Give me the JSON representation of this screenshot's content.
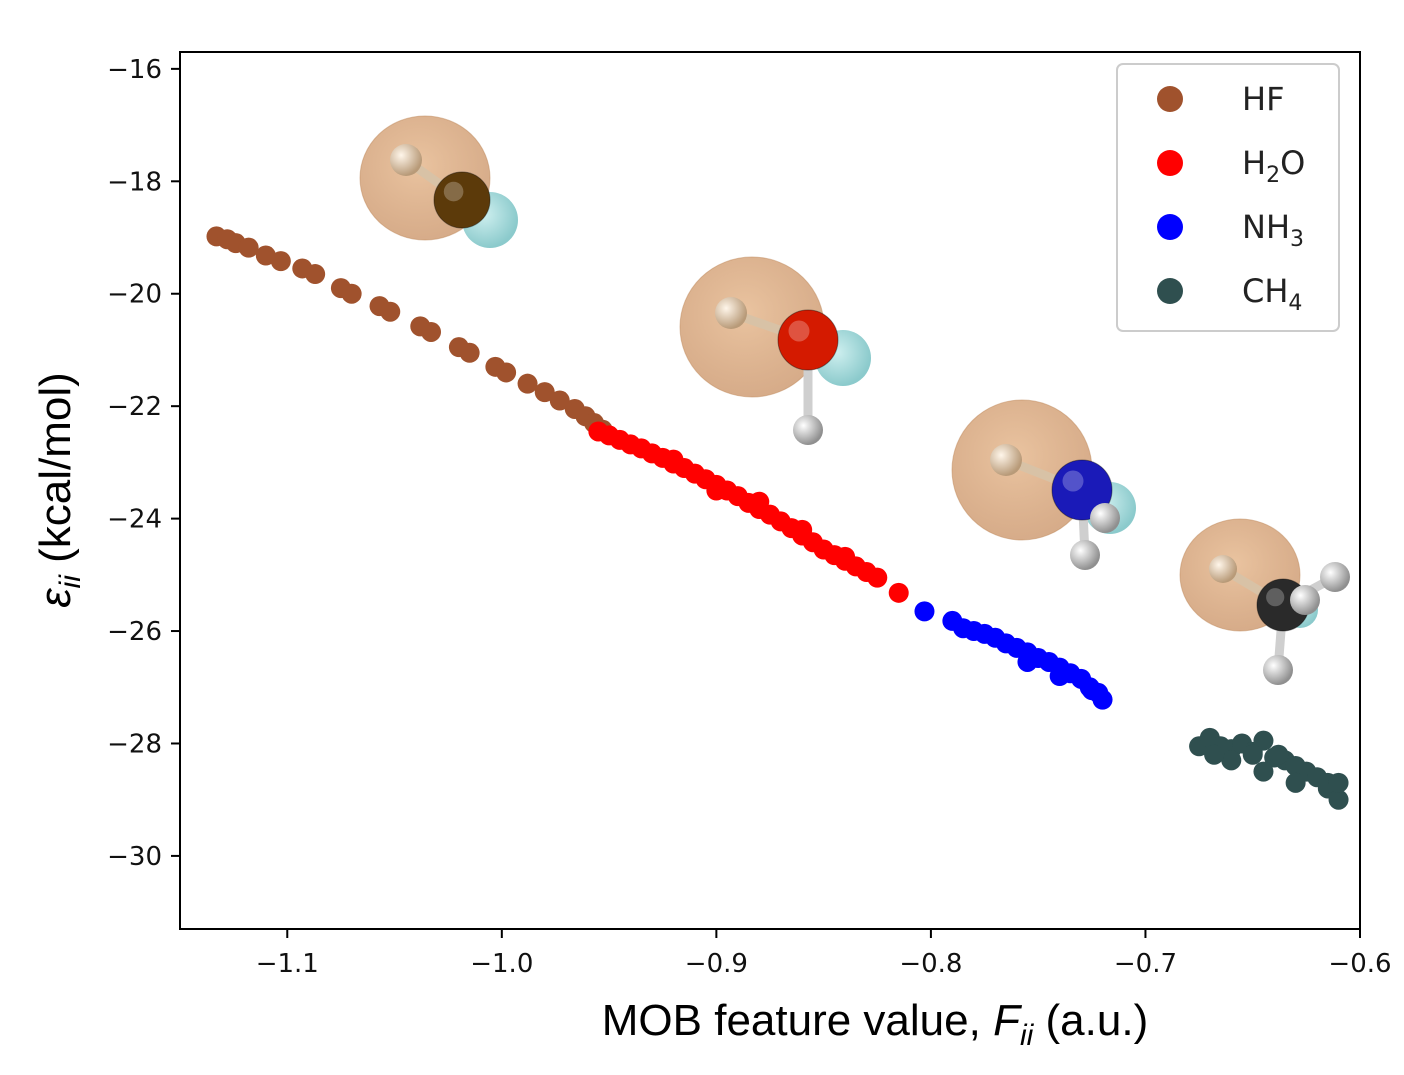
{
  "chart_data": {
    "type": "scatter",
    "xlabel": {
      "main": "MOB feature value, ",
      "symbol": "F",
      "sub": "ii",
      "unit": " (a.u.)"
    },
    "ylabel": {
      "symbol": "ε",
      "sub": "ii",
      "unit": " (kcal/mol)"
    },
    "xlim": [
      -1.15,
      -0.6
    ],
    "ylim": [
      -31.3,
      -15.7
    ],
    "xticks": [
      -1.1,
      -1.0,
      -0.9,
      -0.8,
      -0.7,
      -0.6
    ],
    "xtick_labels": [
      "−1.1",
      "−1.0",
      "−0.9",
      "−0.8",
      "−0.7",
      "−0.6"
    ],
    "yticks": [
      -16,
      -18,
      -20,
      -22,
      -24,
      -26,
      -28,
      -30
    ],
    "ytick_labels": [
      "−16",
      "−18",
      "−20",
      "−22",
      "−24",
      "−26",
      "−28",
      "−30"
    ],
    "grid": false,
    "legend_position": "top-right",
    "series": [
      {
        "name": "HF",
        "label_main": "HF",
        "label_sub": "",
        "color": "#a0522d",
        "points": [
          [
            -1.133,
            -18.98
          ],
          [
            -1.128,
            -19.03
          ],
          [
            -1.124,
            -19.1
          ],
          [
            -1.118,
            -19.18
          ],
          [
            -1.11,
            -19.32
          ],
          [
            -1.103,
            -19.42
          ],
          [
            -1.093,
            -19.55
          ],
          [
            -1.087,
            -19.65
          ],
          [
            -1.075,
            -19.9
          ],
          [
            -1.07,
            -20.0
          ],
          [
            -1.057,
            -20.22
          ],
          [
            -1.052,
            -20.32
          ],
          [
            -1.038,
            -20.58
          ],
          [
            -1.033,
            -20.68
          ],
          [
            -1.02,
            -20.95
          ],
          [
            -1.015,
            -21.05
          ],
          [
            -1.003,
            -21.3
          ],
          [
            -0.998,
            -21.4
          ],
          [
            -0.988,
            -21.6
          ],
          [
            -0.98,
            -21.75
          ],
          [
            -0.973,
            -21.9
          ],
          [
            -0.966,
            -22.05
          ],
          [
            -0.961,
            -22.18
          ],
          [
            -0.957,
            -22.3
          ],
          [
            -0.953,
            -22.42
          ]
        ]
      },
      {
        "name": "H2O",
        "label_main": "H",
        "label_sub": "2",
        "label_tail": "O",
        "color": "#ff0000",
        "points": [
          [
            -0.955,
            -22.45
          ],
          [
            -0.95,
            -22.52
          ],
          [
            -0.945,
            -22.6
          ],
          [
            -0.94,
            -22.68
          ],
          [
            -0.935,
            -22.75
          ],
          [
            -0.93,
            -22.84
          ],
          [
            -0.925,
            -22.92
          ],
          [
            -0.92,
            -23.02
          ],
          [
            -0.915,
            -23.1
          ],
          [
            -0.91,
            -23.2
          ],
          [
            -0.905,
            -23.3
          ],
          [
            -0.9,
            -23.4
          ],
          [
            -0.895,
            -23.5
          ],
          [
            -0.89,
            -23.6
          ],
          [
            -0.885,
            -23.72
          ],
          [
            -0.88,
            -23.83
          ],
          [
            -0.875,
            -23.93
          ],
          [
            -0.87,
            -24.05
          ],
          [
            -0.865,
            -24.17
          ],
          [
            -0.86,
            -24.3
          ],
          [
            -0.855,
            -24.42
          ],
          [
            -0.85,
            -24.55
          ],
          [
            -0.845,
            -24.65
          ],
          [
            -0.84,
            -24.75
          ],
          [
            -0.835,
            -24.85
          ],
          [
            -0.83,
            -24.95
          ],
          [
            -0.825,
            -25.05
          ],
          [
            -0.815,
            -25.32
          ],
          [
            -0.92,
            -22.95
          ],
          [
            -0.9,
            -23.5
          ],
          [
            -0.88,
            -23.7
          ],
          [
            -0.86,
            -24.2
          ],
          [
            -0.84,
            -24.68
          ]
        ]
      },
      {
        "name": "NH3",
        "label_main": "NH",
        "label_sub": "3",
        "color": "#0000ff",
        "points": [
          [
            -0.803,
            -25.65
          ],
          [
            -0.79,
            -25.82
          ],
          [
            -0.785,
            -25.95
          ],
          [
            -0.78,
            -26.0
          ],
          [
            -0.775,
            -26.05
          ],
          [
            -0.77,
            -26.12
          ],
          [
            -0.765,
            -26.22
          ],
          [
            -0.76,
            -26.3
          ],
          [
            -0.755,
            -26.38
          ],
          [
            -0.75,
            -26.48
          ],
          [
            -0.745,
            -26.55
          ],
          [
            -0.74,
            -26.65
          ],
          [
            -0.735,
            -26.75
          ],
          [
            -0.73,
            -26.85
          ],
          [
            -0.726,
            -27.0
          ],
          [
            -0.722,
            -27.1
          ],
          [
            -0.72,
            -27.22
          ],
          [
            -0.755,
            -26.55
          ],
          [
            -0.74,
            -26.8
          ],
          [
            -0.725,
            -27.05
          ]
        ]
      },
      {
        "name": "CH4",
        "label_main": "CH",
        "label_sub": "4",
        "color": "#2f4f4f",
        "points": [
          [
            -0.675,
            -28.05
          ],
          [
            -0.67,
            -27.9
          ],
          [
            -0.665,
            -28.05
          ],
          [
            -0.66,
            -28.1
          ],
          [
            -0.655,
            -28.0
          ],
          [
            -0.65,
            -28.15
          ],
          [
            -0.645,
            -27.95
          ],
          [
            -0.64,
            -28.25
          ],
          [
            -0.635,
            -28.3
          ],
          [
            -0.63,
            -28.4
          ],
          [
            -0.625,
            -28.5
          ],
          [
            -0.62,
            -28.6
          ],
          [
            -0.615,
            -28.8
          ],
          [
            -0.61,
            -29.0
          ],
          [
            -0.66,
            -28.3
          ],
          [
            -0.645,
            -28.5
          ],
          [
            -0.63,
            -28.7
          ],
          [
            -0.615,
            -28.7
          ],
          [
            -0.65,
            -28.2
          ],
          [
            -0.638,
            -28.2
          ],
          [
            -0.61,
            -28.7
          ],
          [
            -0.668,
            -28.2
          ]
        ]
      }
    ]
  },
  "insets": [
    {
      "name": "hf-molecule-illustration",
      "center_atom_color": "#5c3a0a",
      "hydrogens": 0
    },
    {
      "name": "h2o-molecule-illustration",
      "center_atom_color": "#d41a00",
      "hydrogens": 1
    },
    {
      "name": "nh3-molecule-illustration",
      "center_atom_color": "#1a1ab8",
      "hydrogens": 2
    },
    {
      "name": "ch4-molecule-illustration",
      "center_atom_color": "#2a2a2a",
      "hydrogens": 3
    }
  ]
}
